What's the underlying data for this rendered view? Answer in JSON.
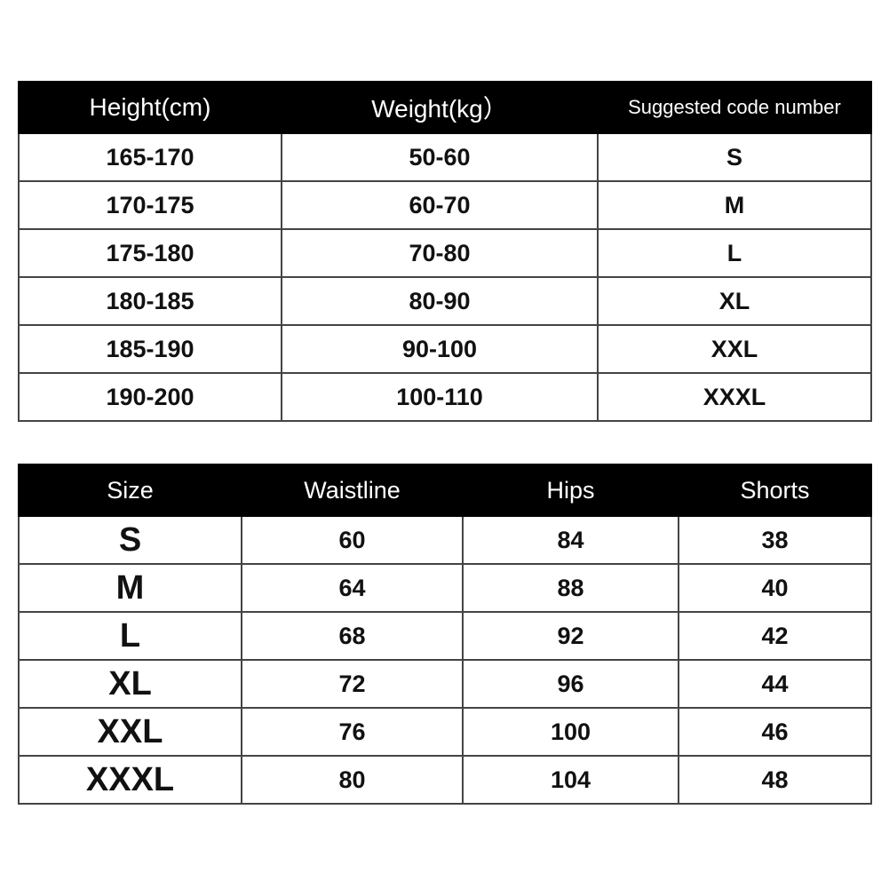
{
  "height_weight_table": {
    "headers": [
      "Height(cm)",
      "Weight(kg）",
      "Suggested code number"
    ],
    "rows": [
      [
        "165-170",
        "50-60",
        "S"
      ],
      [
        "170-175",
        "60-70",
        "M"
      ],
      [
        "175-180",
        "70-80",
        "L"
      ],
      [
        "180-185",
        "80-90",
        "XL"
      ],
      [
        "185-190",
        "90-100",
        "XXL"
      ],
      [
        "190-200",
        "100-110",
        "XXXL"
      ]
    ]
  },
  "measurements_table": {
    "headers": [
      "Size",
      "Waistline",
      "Hips",
      "Shorts"
    ],
    "rows": [
      [
        "S",
        "60",
        "84",
        "38"
      ],
      [
        "M",
        "64",
        "88",
        "40"
      ],
      [
        "L",
        "68",
        "92",
        "42"
      ],
      [
        "XL",
        "72",
        "96",
        "44"
      ],
      [
        "XXL",
        "76",
        "100",
        "46"
      ],
      [
        "XXXL",
        "80",
        "104",
        "48"
      ]
    ]
  },
  "colors": {
    "header_bg": "#000000",
    "header_text": "#ffffff",
    "cell_text": "#111111"
  }
}
